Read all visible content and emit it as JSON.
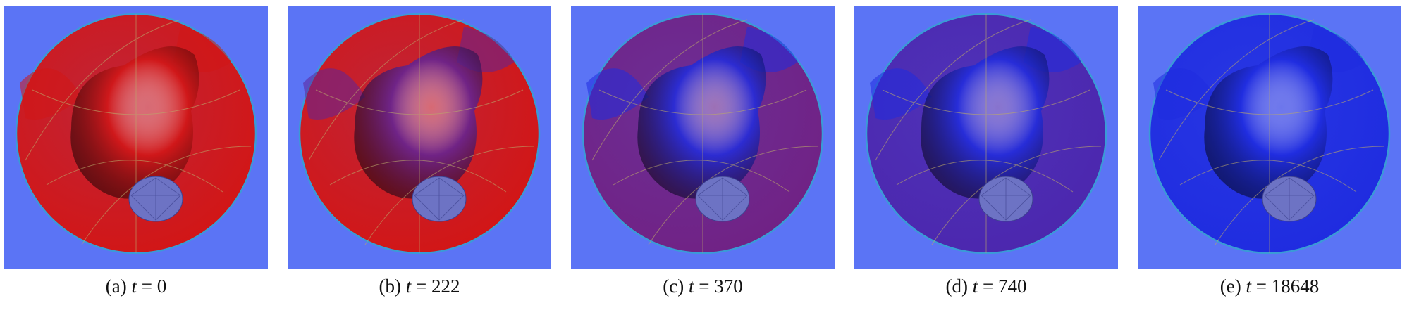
{
  "figure": {
    "panels": [
      {
        "label": "(a)",
        "variable": "t",
        "relation": "=",
        "value": "0",
        "interior_fraction": 0.0,
        "shell_fraction": 0.0
      },
      {
        "label": "(b)",
        "variable": "t",
        "relation": "=",
        "value": "222",
        "interior_fraction": 0.65,
        "shell_fraction": 0.0
      },
      {
        "label": "(c)",
        "variable": "t",
        "relation": "=",
        "value": "370",
        "interior_fraction": 1.0,
        "shell_fraction": 0.55
      },
      {
        "label": "(d)",
        "variable": "t",
        "relation": "=",
        "value": "740",
        "interior_fraction": 1.0,
        "shell_fraction": 0.75
      },
      {
        "label": "(e)",
        "variable": "t",
        "relation": "=",
        "value": "18648",
        "interior_fraction": 1.0,
        "shell_fraction": 1.0
      }
    ],
    "colors": {
      "background": "#5b74f5",
      "phase_red": "#d21616",
      "phase_blue": "#1f2ce0",
      "rim": "#3a9bd6",
      "particle": "#6d73c4"
    }
  }
}
